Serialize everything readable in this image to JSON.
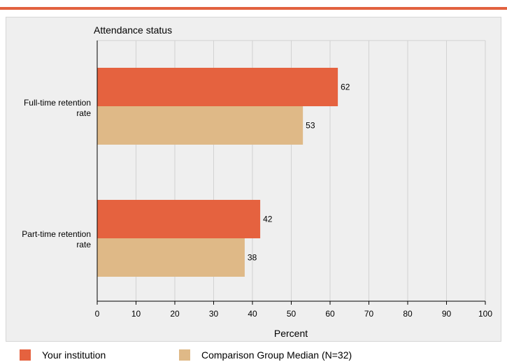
{
  "colors": {
    "top_bar": "#e2623f",
    "primary": "#e5623f",
    "comparison": "#dfb987",
    "grid": "#d2d2d2",
    "axis": "#000000"
  },
  "chart_data": {
    "type": "bar",
    "orientation": "horizontal",
    "title": "Attendance status",
    "xlabel": "Percent",
    "ylabel": "",
    "xlim": [
      0,
      100
    ],
    "xticks": [
      "0",
      "10",
      "20",
      "30",
      "40",
      "50",
      "60",
      "70",
      "80",
      "90",
      "100"
    ],
    "grid": true,
    "legend_position": "bottom",
    "categories": [
      {
        "line1": "Full-time retention",
        "line2": "rate"
      },
      {
        "line1": "Part-time retention",
        "line2": "rate"
      }
    ],
    "series": [
      {
        "name": "Your institution",
        "color": "#e5623f",
        "values": [
          62,
          42
        ]
      },
      {
        "name": "Comparison Group Median (N=32)",
        "color": "#dfb987",
        "values": [
          53,
          38
        ]
      }
    ]
  },
  "legend": [
    {
      "label": "Your institution"
    },
    {
      "label": "Comparison Group Median (N=32)"
    }
  ]
}
